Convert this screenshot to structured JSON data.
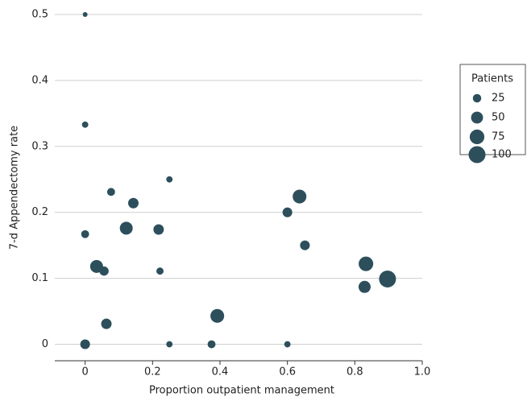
{
  "chart_data": {
    "type": "bubble",
    "xlabel": "Proportion outpatient management",
    "ylabel": "7-d Appendectomy rate",
    "x": [
      0,
      0,
      0.25,
      0.077,
      0.143,
      0.122,
      0.218,
      0,
      0.034,
      0.056,
      0.222,
      0.063,
      0,
      0.25,
      0.375,
      0.392,
      0.6,
      0.6,
      0.636,
      0.652,
      0.833,
      0.829,
      0.897
    ],
    "values": [
      0.5,
      0.333,
      0.25,
      0.231,
      0.214,
      0.176,
      0.174,
      0.167,
      0.118,
      0.111,
      0.111,
      0.031,
      0,
      0,
      0,
      0.043,
      0,
      0.2,
      0.224,
      0.15,
      0.122,
      0.087,
      0.099
    ],
    "sizes": [
      8,
      14,
      14,
      22,
      38,
      58,
      38,
      22,
      58,
      30,
      18,
      38,
      33,
      14,
      22,
      66,
      14,
      33,
      66,
      33,
      74,
      51,
      100
    ],
    "color": "#2d4f5c",
    "xlim": [
      -0.09,
      1.0
    ],
    "ylim": [
      -0.025,
      0.5
    ],
    "xticks": [
      0,
      0.2,
      0.4,
      0.6,
      0.8,
      {
        "value": 1,
        "label": "1.0"
      }
    ],
    "yticks": [
      0,
      0.1,
      0.2,
      0.3,
      0.4,
      0.5
    ],
    "grid": true,
    "size_legend": {
      "title": "Patients",
      "values": [
        25,
        50,
        75,
        100
      ]
    }
  }
}
